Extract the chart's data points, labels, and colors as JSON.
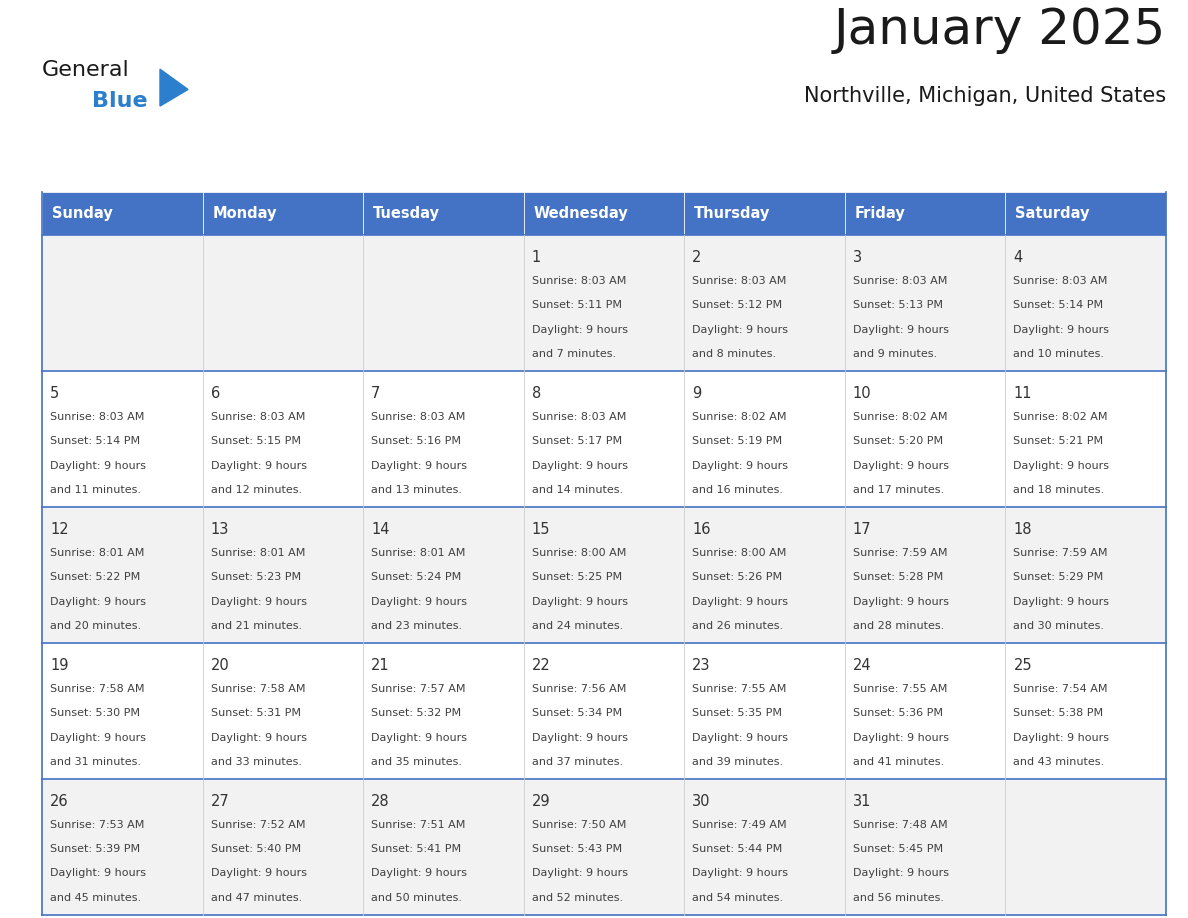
{
  "title": "January 2025",
  "subtitle": "Northville, Michigan, United States",
  "days_of_week": [
    "Sunday",
    "Monday",
    "Tuesday",
    "Wednesday",
    "Thursday",
    "Friday",
    "Saturday"
  ],
  "header_bg": "#4472C4",
  "header_text_color": "#FFFFFF",
  "cell_bg_odd": "#F2F2F2",
  "cell_bg_even": "#FFFFFF",
  "border_color": "#4472C4",
  "row_border_color": "#4472C4",
  "text_color": "#404040",
  "day_num_color": "#333333",
  "logo_general_color": "#1a1a1a",
  "logo_blue_color": "#2B7FCC",
  "logo_triangle_color": "#2B7FCC",
  "calendar_data": [
    [
      null,
      null,
      null,
      {
        "day": 1,
        "sunrise": "8:03 AM",
        "sunset": "5:11 PM",
        "daylight": "9 hours and 7 minutes."
      },
      {
        "day": 2,
        "sunrise": "8:03 AM",
        "sunset": "5:12 PM",
        "daylight": "9 hours and 8 minutes."
      },
      {
        "day": 3,
        "sunrise": "8:03 AM",
        "sunset": "5:13 PM",
        "daylight": "9 hours and 9 minutes."
      },
      {
        "day": 4,
        "sunrise": "8:03 AM",
        "sunset": "5:14 PM",
        "daylight": "9 hours and 10 minutes."
      }
    ],
    [
      {
        "day": 5,
        "sunrise": "8:03 AM",
        "sunset": "5:14 PM",
        "daylight": "9 hours and 11 minutes."
      },
      {
        "day": 6,
        "sunrise": "8:03 AM",
        "sunset": "5:15 PM",
        "daylight": "9 hours and 12 minutes."
      },
      {
        "day": 7,
        "sunrise": "8:03 AM",
        "sunset": "5:16 PM",
        "daylight": "9 hours and 13 minutes."
      },
      {
        "day": 8,
        "sunrise": "8:03 AM",
        "sunset": "5:17 PM",
        "daylight": "9 hours and 14 minutes."
      },
      {
        "day": 9,
        "sunrise": "8:02 AM",
        "sunset": "5:19 PM",
        "daylight": "9 hours and 16 minutes."
      },
      {
        "day": 10,
        "sunrise": "8:02 AM",
        "sunset": "5:20 PM",
        "daylight": "9 hours and 17 minutes."
      },
      {
        "day": 11,
        "sunrise": "8:02 AM",
        "sunset": "5:21 PM",
        "daylight": "9 hours and 18 minutes."
      }
    ],
    [
      {
        "day": 12,
        "sunrise": "8:01 AM",
        "sunset": "5:22 PM",
        "daylight": "9 hours and 20 minutes."
      },
      {
        "day": 13,
        "sunrise": "8:01 AM",
        "sunset": "5:23 PM",
        "daylight": "9 hours and 21 minutes."
      },
      {
        "day": 14,
        "sunrise": "8:01 AM",
        "sunset": "5:24 PM",
        "daylight": "9 hours and 23 minutes."
      },
      {
        "day": 15,
        "sunrise": "8:00 AM",
        "sunset": "5:25 PM",
        "daylight": "9 hours and 24 minutes."
      },
      {
        "day": 16,
        "sunrise": "8:00 AM",
        "sunset": "5:26 PM",
        "daylight": "9 hours and 26 minutes."
      },
      {
        "day": 17,
        "sunrise": "7:59 AM",
        "sunset": "5:28 PM",
        "daylight": "9 hours and 28 minutes."
      },
      {
        "day": 18,
        "sunrise": "7:59 AM",
        "sunset": "5:29 PM",
        "daylight": "9 hours and 30 minutes."
      }
    ],
    [
      {
        "day": 19,
        "sunrise": "7:58 AM",
        "sunset": "5:30 PM",
        "daylight": "9 hours and 31 minutes."
      },
      {
        "day": 20,
        "sunrise": "7:58 AM",
        "sunset": "5:31 PM",
        "daylight": "9 hours and 33 minutes."
      },
      {
        "day": 21,
        "sunrise": "7:57 AM",
        "sunset": "5:32 PM",
        "daylight": "9 hours and 35 minutes."
      },
      {
        "day": 22,
        "sunrise": "7:56 AM",
        "sunset": "5:34 PM",
        "daylight": "9 hours and 37 minutes."
      },
      {
        "day": 23,
        "sunrise": "7:55 AM",
        "sunset": "5:35 PM",
        "daylight": "9 hours and 39 minutes."
      },
      {
        "day": 24,
        "sunrise": "7:55 AM",
        "sunset": "5:36 PM",
        "daylight": "9 hours and 41 minutes."
      },
      {
        "day": 25,
        "sunrise": "7:54 AM",
        "sunset": "5:38 PM",
        "daylight": "9 hours and 43 minutes."
      }
    ],
    [
      {
        "day": 26,
        "sunrise": "7:53 AM",
        "sunset": "5:39 PM",
        "daylight": "9 hours and 45 minutes."
      },
      {
        "day": 27,
        "sunrise": "7:52 AM",
        "sunset": "5:40 PM",
        "daylight": "9 hours and 47 minutes."
      },
      {
        "day": 28,
        "sunrise": "7:51 AM",
        "sunset": "5:41 PM",
        "daylight": "9 hours and 50 minutes."
      },
      {
        "day": 29,
        "sunrise": "7:50 AM",
        "sunset": "5:43 PM",
        "daylight": "9 hours and 52 minutes."
      },
      {
        "day": 30,
        "sunrise": "7:49 AM",
        "sunset": "5:44 PM",
        "daylight": "9 hours and 54 minutes."
      },
      {
        "day": 31,
        "sunrise": "7:48 AM",
        "sunset": "5:45 PM",
        "daylight": "9 hours and 56 minutes."
      },
      null
    ]
  ]
}
